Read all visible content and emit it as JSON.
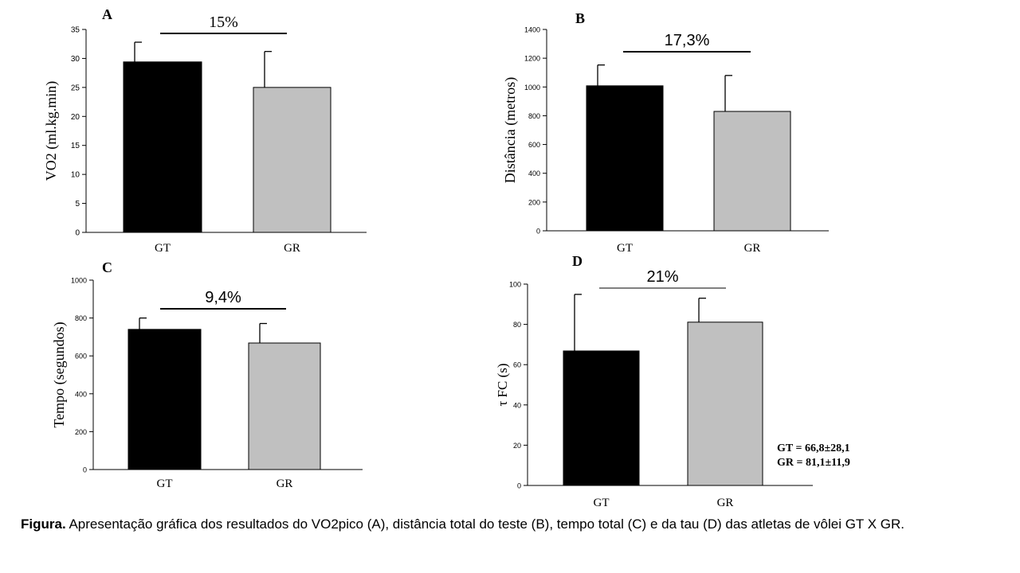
{
  "colors": {
    "GT": "#000000",
    "GR": "#c0c0c0",
    "axis": "#000000"
  },
  "caption": {
    "label": "Figura.",
    "text": "Apresentação gráfica dos resultados do VO2pico (A), distância total do teste (B), tempo total (C) e da tau (D) das atletas de vôlei GT X GR."
  },
  "chart_data": [
    {
      "panel": "A",
      "type": "bar",
      "categories": [
        "GT",
        "GR"
      ],
      "values": [
        29.4,
        25.0
      ],
      "errors": [
        3.4,
        6.2
      ],
      "ylim": [
        0,
        35
      ],
      "yticks": [
        0,
        5,
        10,
        15,
        20,
        25,
        30,
        35
      ],
      "ylabel": "VO2 (ml.kg.min)",
      "annotation": "15%"
    },
    {
      "panel": "B",
      "type": "bar",
      "categories": [
        "GT",
        "GR"
      ],
      "values": [
        1008,
        830
      ],
      "errors": [
        145,
        250
      ],
      "ylim": [
        0,
        1400
      ],
      "yticks": [
        0,
        200,
        400,
        600,
        800,
        1000,
        1200,
        1400
      ],
      "ylabel": "Distância (metros)",
      "annotation": "17,3%"
    },
    {
      "panel": "C",
      "type": "bar",
      "categories": [
        "GT",
        "GR"
      ],
      "values": [
        740,
        668
      ],
      "errors": [
        60,
        103
      ],
      "ylim": [
        0,
        1000
      ],
      "yticks": [
        0,
        200,
        400,
        600,
        800,
        1000
      ],
      "ylabel": "Tempo (segundos)",
      "annotation": "9,4%"
    },
    {
      "panel": "D",
      "type": "bar",
      "categories": [
        "GT",
        "GR"
      ],
      "values": [
        66.8,
        81.1
      ],
      "errors": [
        28.1,
        11.9
      ],
      "ylim": [
        0,
        100
      ],
      "yticks": [
        0,
        20,
        40,
        60,
        80,
        100
      ],
      "ylabel": "τ FC (s)",
      "annotation": "21%",
      "stats": [
        "GT = 66,8±28,1",
        "GR = 81,1±11,9"
      ]
    }
  ]
}
